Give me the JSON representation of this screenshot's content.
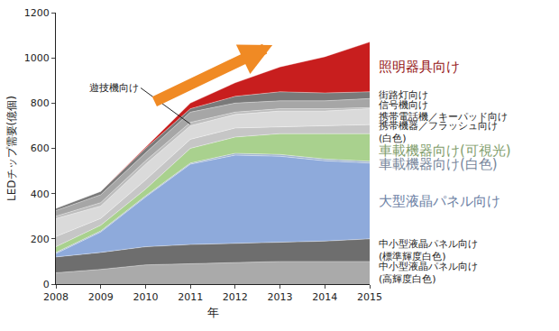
{
  "chart_data": {
    "type": "area",
    "stacked": true,
    "grid": false,
    "x_label": "年",
    "y_label": "LEDチップ需要(億個)",
    "x": [
      2008,
      2009,
      2010,
      2011,
      2012,
      2013,
      2014,
      2015
    ],
    "xlim": [
      2008,
      2015
    ],
    "xticks": [
      2008,
      2009,
      2010,
      2011,
      2012,
      2013,
      2014,
      2015
    ],
    "ylim": [
      0,
      1200
    ],
    "yticks": [
      0,
      200,
      400,
      600,
      800,
      1000,
      1200
    ],
    "series": [
      {
        "name": "中小型液晶パネル向け(高輝度白色)",
        "color": "#aaaaaa",
        "values": [
          50,
          65,
          85,
          90,
          95,
          100,
          100,
          100
        ]
      },
      {
        "name": "中小型液晶パネル向け(標準輝度白色)",
        "color": "#6e6e6e",
        "values": [
          70,
          75,
          80,
          85,
          85,
          85,
          90,
          100
        ]
      },
      {
        "name": "大型液晶パネル向け",
        "color": "#8eaadb",
        "values": [
          15,
          90,
          220,
          355,
          390,
          380,
          355,
          335
        ]
      },
      {
        "name": "車載機器向け(白色)",
        "color": "#9fb3cf",
        "values": [
          5,
          5,
          5,
          5,
          8,
          8,
          8,
          8
        ]
      },
      {
        "name": "車載機器向け(可視光)",
        "color": "#a9d18e",
        "values": [
          25,
          25,
          30,
          65,
          72,
          92,
          112,
          122
        ]
      },
      {
        "name": "携帯機器／フラッシュ向け(白色)",
        "color": "#c6c6c6",
        "values": [
          45,
          30,
          40,
          40,
          40,
          30,
          35,
          40
        ]
      },
      {
        "name": "携帯電話機／キーパッド向け",
        "color": "#dadada",
        "values": [
          80,
          55,
          70,
          60,
          60,
          70,
          65,
          70
        ]
      },
      {
        "name": "遊技機向け",
        "color": "#bdbdbd",
        "values": [
          10,
          15,
          15,
          15,
          10,
          10,
          10,
          5
        ]
      },
      {
        "name": "信号機向け",
        "color": "#a6a6a6",
        "values": [
          25,
          35,
          35,
          45,
          40,
          35,
          35,
          40
        ]
      },
      {
        "name": "街路灯向け",
        "color": "#7a7a7a",
        "values": [
          10,
          15,
          20,
          15,
          30,
          40,
          35,
          30
        ]
      },
      {
        "name": "照明器具向け",
        "color": "#c81e1e",
        "values": [
          0,
          0,
          5,
          25,
          60,
          110,
          160,
          220
        ]
      }
    ]
  }
}
